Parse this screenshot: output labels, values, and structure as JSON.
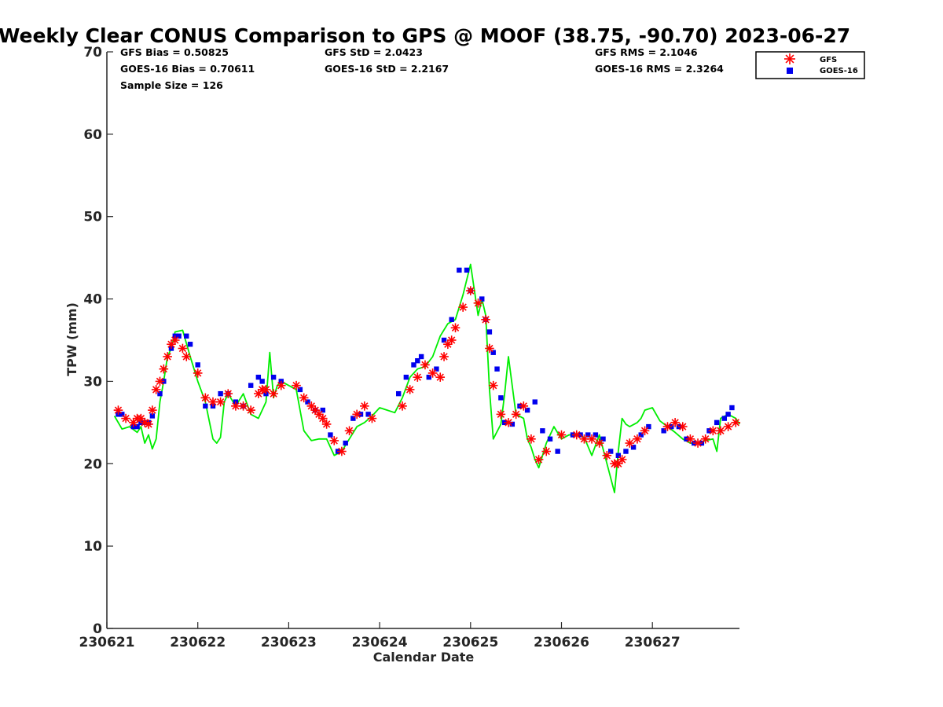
{
  "chart_data": {
    "type": "scatter",
    "title": "Weekly Clear CONUS Comparison to GPS @ MOOF (38.75, -90.70) 2023-06-27",
    "xlabel": "Calendar Date",
    "ylabel": "TPW (mm)",
    "xlim": [
      "2023-06-21",
      "2023-06-27T23:00"
    ],
    "ylim": [
      0,
      70
    ],
    "x_ticks": [
      "230621",
      "230622",
      "230623",
      "230624",
      "230625",
      "230626",
      "230627"
    ],
    "y_ticks": [
      "0",
      "10",
      "20",
      "30",
      "40",
      "50",
      "60",
      "70"
    ],
    "grid": false,
    "legend": {
      "position": "top-right",
      "entries": [
        "GFS",
        "GOES-16"
      ]
    },
    "stats": {
      "gfs_bias": "GFS Bias = 0.50825",
      "goes_bias": "GOES-16 Bias = 0.70611",
      "sample_size": "Sample Size = 126",
      "gfs_std": "GFS StD = 2.0423",
      "goes_std": "GOES-16 StD = 2.2167",
      "gfs_rms": "GFS RMS = 2.1046",
      "goes_rms": "GOES-16 RMS = 2.3264"
    },
    "series": [
      {
        "role": "gps",
        "color": "#00ee00",
        "marker": "line",
        "x": [
          "2023-06-21T02:00",
          "2023-06-21T04:00",
          "2023-06-21T06:00",
          "2023-06-21T08:00",
          "2023-06-21T09:00",
          "2023-06-21T10:00",
          "2023-06-21T11:00",
          "2023-06-21T12:00",
          "2023-06-21T13:00",
          "2023-06-21T14:00",
          "2023-06-21T15:00",
          "2023-06-21T16:00",
          "2023-06-21T17:00",
          "2023-06-21T18:00",
          "2023-06-21T20:00",
          "2023-06-21T22:00",
          "2023-06-22T00:00",
          "2023-06-22T02:00",
          "2023-06-22T04:00",
          "2023-06-22T05:00",
          "2023-06-22T06:00",
          "2023-06-22T07:00",
          "2023-06-22T08:00",
          "2023-06-22T10:00",
          "2023-06-22T12:00",
          "2023-06-22T14:00",
          "2023-06-22T16:00",
          "2023-06-22T18:00",
          "2023-06-22T19:00",
          "2023-06-22T20:00",
          "2023-06-22T21:00",
          "2023-06-22T22:00",
          "2023-06-23T00:00",
          "2023-06-23T02:00",
          "2023-06-23T04:00",
          "2023-06-23T06:00",
          "2023-06-23T08:00",
          "2023-06-23T10:00",
          "2023-06-23T12:00",
          "2023-06-23T14:00",
          "2023-06-23T16:00",
          "2023-06-23T18:00",
          "2023-06-23T20:00",
          "2023-06-23T22:00",
          "2023-06-24T00:00",
          "2023-06-24T02:00",
          "2023-06-24T04:00",
          "2023-06-24T06:00",
          "2023-06-24T08:00",
          "2023-06-24T10:00",
          "2023-06-24T12:00",
          "2023-06-24T14:00",
          "2023-06-24T16:00",
          "2023-06-24T18:00",
          "2023-06-24T20:00",
          "2023-06-24T22:00",
          "2023-06-25T00:00",
          "2023-06-25T02:00",
          "2023-06-25T03:00",
          "2023-06-25T04:00",
          "2023-06-25T05:00",
          "2023-06-25T06:00",
          "2023-06-25T08:00",
          "2023-06-25T09:00",
          "2023-06-25T10:00",
          "2023-06-25T12:00",
          "2023-06-25T14:00",
          "2023-06-25T15:00",
          "2023-06-25T16:00",
          "2023-06-25T17:00",
          "2023-06-25T18:00",
          "2023-06-25T20:00",
          "2023-06-25T22:00",
          "2023-06-26T00:00",
          "2023-06-26T02:00",
          "2023-06-26T04:00",
          "2023-06-26T06:00",
          "2023-06-26T08:00",
          "2023-06-26T10:00",
          "2023-06-26T12:00",
          "2023-06-26T14:00",
          "2023-06-26T15:00",
          "2023-06-26T16:00",
          "2023-06-26T17:00",
          "2023-06-26T18:00",
          "2023-06-26T20:00",
          "2023-06-26T21:00",
          "2023-06-26T22:00",
          "2023-06-27T00:00",
          "2023-06-27T02:00",
          "2023-06-27T04:00",
          "2023-06-27T06:00",
          "2023-06-27T08:00",
          "2023-06-27T10:00",
          "2023-06-27T12:00",
          "2023-06-27T14:00",
          "2023-06-27T16:00",
          "2023-06-27T17:00",
          "2023-06-27T18:00",
          "2023-06-27T20:00",
          "2023-06-27T22:00",
          "2023-06-27T23:00"
        ],
        "y": [
          25.8,
          24.2,
          24.5,
          23.8,
          24.5,
          22.5,
          23.5,
          21.8,
          23.0,
          27.5,
          30.0,
          33.0,
          34.0,
          36.0,
          36.2,
          33.0,
          30.0,
          27.5,
          23.0,
          22.5,
          23.2,
          27.5,
          28.5,
          27.0,
          28.5,
          26.0,
          25.5,
          27.5,
          33.5,
          28.0,
          29.5,
          30.0,
          29.5,
          29.0,
          24.0,
          22.8,
          23.0,
          23.0,
          21.0,
          21.5,
          23.0,
          24.5,
          25.0,
          25.8,
          26.8,
          26.5,
          26.2,
          28.0,
          30.5,
          31.5,
          31.8,
          33.0,
          35.5,
          37.0,
          37.5,
          40.5,
          44.2,
          38.0,
          40.0,
          38.0,
          29.0,
          23.0,
          24.8,
          28.5,
          33.0,
          26.0,
          25.5,
          23.0,
          22.0,
          20.5,
          19.5,
          22.5,
          24.5,
          23.0,
          23.5,
          23.5,
          23.2,
          21.0,
          23.5,
          20.0,
          16.5,
          21.5,
          25.5,
          24.8,
          24.5,
          25.0,
          25.5,
          26.5,
          26.8,
          25.2,
          24.5,
          23.8,
          23.0,
          22.5,
          22.5,
          22.8,
          23.0,
          21.5,
          25.5,
          26.0,
          25.5,
          24.8
        ]
      },
      {
        "name": "GFS",
        "color": "#ff0000",
        "marker": "asterisk",
        "x": [
          "2023-06-21T03:00",
          "2023-06-21T05:00",
          "2023-06-21T07:00",
          "2023-06-21T08:00",
          "2023-06-21T09:00",
          "2023-06-21T10:00",
          "2023-06-21T11:00",
          "2023-06-21T12:00",
          "2023-06-21T13:00",
          "2023-06-21T14:00",
          "2023-06-21T15:00",
          "2023-06-21T16:00",
          "2023-06-21T17:00",
          "2023-06-21T18:00",
          "2023-06-21T20:00",
          "2023-06-21T21:00",
          "2023-06-22T00:00",
          "2023-06-22T02:00",
          "2023-06-22T04:00",
          "2023-06-22T06:00",
          "2023-06-22T08:00",
          "2023-06-22T10:00",
          "2023-06-22T12:00",
          "2023-06-22T14:00",
          "2023-06-22T16:00",
          "2023-06-22T17:00",
          "2023-06-22T18:00",
          "2023-06-22T20:00",
          "2023-06-22T22:00",
          "2023-06-23T02:00",
          "2023-06-23T04:00",
          "2023-06-23T06:00",
          "2023-06-23T07:00",
          "2023-06-23T08:00",
          "2023-06-23T09:00",
          "2023-06-23T10:00",
          "2023-06-23T12:00",
          "2023-06-23T14:00",
          "2023-06-23T16:00",
          "2023-06-23T18:00",
          "2023-06-23T20:00",
          "2023-06-23T22:00",
          "2023-06-24T06:00",
          "2023-06-24T08:00",
          "2023-06-24T10:00",
          "2023-06-24T12:00",
          "2023-06-24T14:00",
          "2023-06-24T16:00",
          "2023-06-24T17:00",
          "2023-06-24T18:00",
          "2023-06-24T19:00",
          "2023-06-24T20:00",
          "2023-06-24T22:00",
          "2023-06-25T00:00",
          "2023-06-25T02:00",
          "2023-06-25T04:00",
          "2023-06-25T05:00",
          "2023-06-25T06:00",
          "2023-06-25T08:00",
          "2023-06-25T10:00",
          "2023-06-25T12:00",
          "2023-06-25T14:00",
          "2023-06-25T16:00",
          "2023-06-25T18:00",
          "2023-06-25T20:00",
          "2023-06-26T00:00",
          "2023-06-26T04:00",
          "2023-06-26T06:00",
          "2023-06-26T08:00",
          "2023-06-26T10:00",
          "2023-06-26T12:00",
          "2023-06-26T14:00",
          "2023-06-26T15:00",
          "2023-06-26T16:00",
          "2023-06-26T18:00",
          "2023-06-26T20:00",
          "2023-06-26T22:00",
          "2023-06-27T04:00",
          "2023-06-27T06:00",
          "2023-06-27T08:00",
          "2023-06-27T10:00",
          "2023-06-27T12:00",
          "2023-06-27T14:00",
          "2023-06-27T16:00",
          "2023-06-27T18:00",
          "2023-06-27T20:00",
          "2023-06-27T22:00"
        ],
        "y": [
          26.5,
          25.5,
          25.0,
          25.5,
          25.5,
          25.0,
          24.8,
          26.5,
          29.0,
          30.0,
          31.5,
          33.0,
          34.5,
          35.0,
          34.0,
          33.0,
          31.0,
          28.0,
          27.5,
          27.5,
          28.5,
          27.0,
          27.0,
          26.5,
          28.5,
          29.0,
          29.0,
          28.5,
          29.5,
          29.5,
          28.0,
          27.0,
          26.5,
          26.0,
          25.5,
          24.8,
          22.8,
          21.5,
          24.0,
          26.0,
          27.0,
          25.5,
          27.0,
          29.0,
          30.5,
          32.0,
          31.0,
          30.5,
          33.0,
          34.5,
          35.0,
          36.5,
          39.0,
          41.0,
          39.5,
          37.5,
          34.0,
          29.5,
          26.0,
          25.0,
          26.0,
          27.0,
          23.0,
          20.5,
          21.5,
          23.5,
          23.5,
          23.0,
          23.0,
          22.5,
          21.0,
          20.0,
          20.0,
          20.5,
          22.5,
          23.0,
          24.0,
          24.5,
          25.0,
          24.5,
          23.0,
          22.5,
          23.0,
          24.0,
          24.0,
          24.5,
          25.0
        ]
      },
      {
        "name": "GOES-16",
        "color": "#0000ee",
        "marker": "square",
        "x": [
          "2023-06-21T03:00",
          "2023-06-21T04:00",
          "2023-06-21T07:00",
          "2023-06-21T08:00",
          "2023-06-21T09:00",
          "2023-06-21T10:00",
          "2023-06-21T11:00",
          "2023-06-21T12:00",
          "2023-06-21T14:00",
          "2023-06-21T15:00",
          "2023-06-21T17:00",
          "2023-06-21T18:00",
          "2023-06-21T19:00",
          "2023-06-21T21:00",
          "2023-06-21T22:00",
          "2023-06-22T00:00",
          "2023-06-22T02:00",
          "2023-06-22T04:00",
          "2023-06-22T06:00",
          "2023-06-22T08:00",
          "2023-06-22T10:00",
          "2023-06-22T12:00",
          "2023-06-22T14:00",
          "2023-06-22T16:00",
          "2023-06-22T17:00",
          "2023-06-22T18:00",
          "2023-06-22T20:00",
          "2023-06-22T22:00",
          "2023-06-23T03:00",
          "2023-06-23T05:00",
          "2023-06-23T07:00",
          "2023-06-23T09:00",
          "2023-06-23T11:00",
          "2023-06-23T13:00",
          "2023-06-23T15:00",
          "2023-06-23T17:00",
          "2023-06-23T19:00",
          "2023-06-23T21:00",
          "2023-06-24T05:00",
          "2023-06-24T07:00",
          "2023-06-24T09:00",
          "2023-06-24T10:00",
          "2023-06-24T11:00",
          "2023-06-24T13:00",
          "2023-06-24T15:00",
          "2023-06-24T17:00",
          "2023-06-24T19:00",
          "2023-06-24T21:00",
          "2023-06-24T23:00",
          "2023-06-25T00:00",
          "2023-06-25T03:00",
          "2023-06-25T04:00",
          "2023-06-25T05:00",
          "2023-06-25T06:00",
          "2023-06-25T07:00",
          "2023-06-25T08:00",
          "2023-06-25T09:00",
          "2023-06-25T11:00",
          "2023-06-25T13:00",
          "2023-06-25T15:00",
          "2023-06-25T17:00",
          "2023-06-25T19:00",
          "2023-06-25T21:00",
          "2023-06-25T23:00",
          "2023-06-26T03:00",
          "2023-06-26T05:00",
          "2023-06-26T07:00",
          "2023-06-26T09:00",
          "2023-06-26T11:00",
          "2023-06-26T13:00",
          "2023-06-26T15:00",
          "2023-06-26T17:00",
          "2023-06-26T19:00",
          "2023-06-26T21:00",
          "2023-06-26T23:00",
          "2023-06-27T03:00",
          "2023-06-27T05:00",
          "2023-06-27T07:00",
          "2023-06-27T09:00",
          "2023-06-27T11:00",
          "2023-06-27T13:00",
          "2023-06-27T15:00",
          "2023-06-27T17:00",
          "2023-06-27T19:00",
          "2023-06-27T20:00",
          "2023-06-27T21:00"
        ],
        "y": [
          26.0,
          26.0,
          24.5,
          24.5,
          25.0,
          25.0,
          25.0,
          25.8,
          28.5,
          30.0,
          34.0,
          35.5,
          35.5,
          35.5,
          34.5,
          32.0,
          27.0,
          27.0,
          28.5,
          28.5,
          27.5,
          27.0,
          29.5,
          30.5,
          30.0,
          28.5,
          30.5,
          30.0,
          29.0,
          27.5,
          26.5,
          26.5,
          23.5,
          21.5,
          22.5,
          25.5,
          26.0,
          26.0,
          28.5,
          30.5,
          32.0,
          32.5,
          33.0,
          30.5,
          31.5,
          35.0,
          37.5,
          43.5,
          43.5,
          41.0,
          40.0,
          37.5,
          36.0,
          33.5,
          31.5,
          28.0,
          25.0,
          24.8,
          27.0,
          26.5,
          27.5,
          24.0,
          23.0,
          21.5,
          23.5,
          23.5,
          23.5,
          23.5,
          23.0,
          21.5,
          21.0,
          21.5,
          22.0,
          23.5,
          24.5,
          24.0,
          24.5,
          24.5,
          23.0,
          22.5,
          22.5,
          24.0,
          25.0,
          25.5,
          26.0,
          26.8
        ]
      }
    ]
  }
}
